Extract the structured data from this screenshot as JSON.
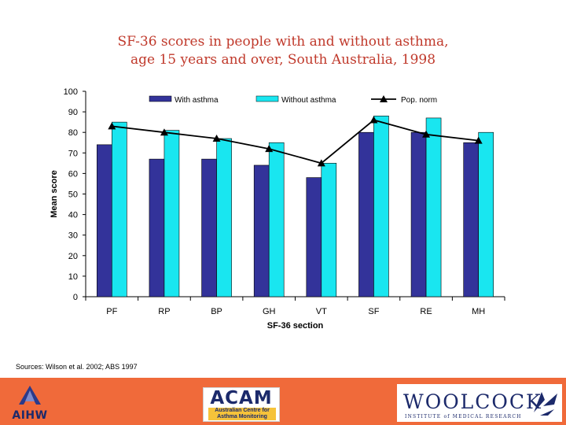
{
  "title_lines": [
    "SF-36 scores in people with and without asthma,",
    "age 15 years and over, South Australia, 1998"
  ],
  "source_text": "Sources: Wilson et al. 2002; ABS 1997",
  "colors": {
    "title": "#c0392b",
    "with_asthma": "#33339a",
    "without_asthma": "#19e6f0",
    "pop_norm": "#000000",
    "footer": "#f06a3a"
  },
  "chart_data": {
    "type": "bar",
    "xlabel": "SF-36 section",
    "ylabel": "Mean score",
    "ylim": [
      0,
      100
    ],
    "yticks": [
      0,
      10,
      20,
      30,
      40,
      50,
      60,
      70,
      80,
      90,
      100
    ],
    "categories": [
      "PF",
      "RP",
      "BP",
      "GH",
      "VT",
      "SF",
      "RE",
      "MH"
    ],
    "series": [
      {
        "name": "With asthma",
        "kind": "bar",
        "values": [
          74,
          67,
          67,
          64,
          58,
          80,
          80,
          75
        ]
      },
      {
        "name": "Without asthma",
        "kind": "bar",
        "values": [
          85,
          81,
          77,
          75,
          65,
          88,
          87,
          80
        ]
      },
      {
        "name": "Pop. norm",
        "kind": "line",
        "values": [
          83,
          80,
          77,
          72,
          65,
          86,
          79,
          76
        ]
      }
    ],
    "legend_position": "top",
    "grid": false
  },
  "logos": {
    "aihw": "AIHW",
    "acam": "ACAM",
    "acam_sub": "Australian Centre for Asthma Monitoring",
    "woolcock": "WOOLCOCK",
    "woolcock_sub": "INSTITUTE of MEDICAL RESEARCH"
  }
}
